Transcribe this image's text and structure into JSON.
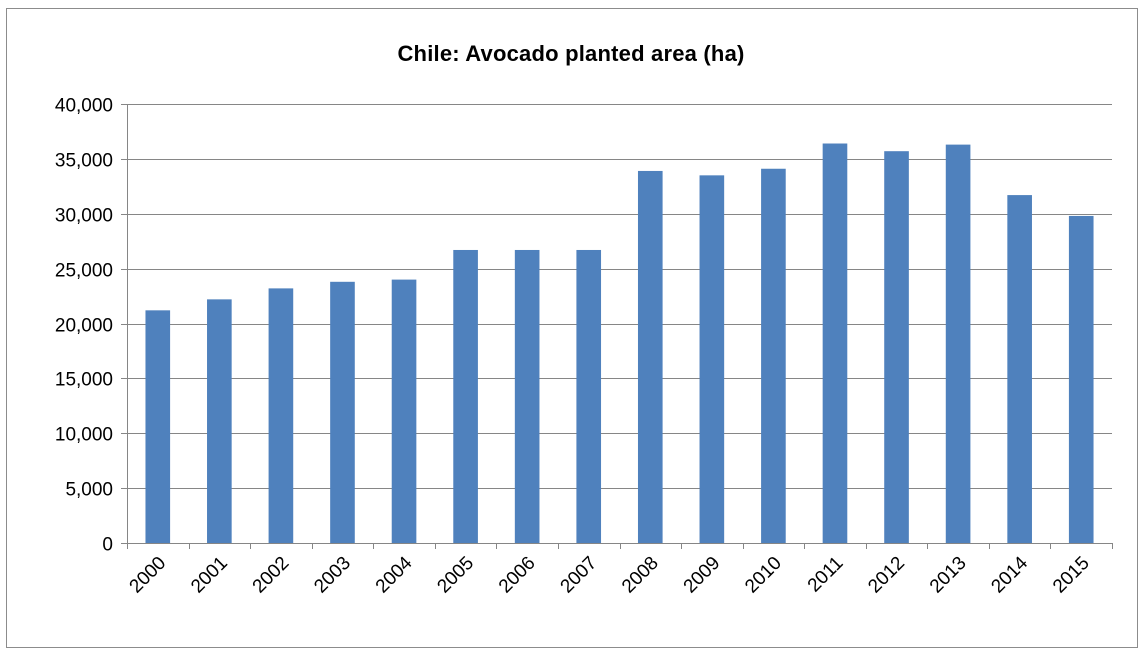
{
  "chart_data": {
    "type": "bar",
    "title": "Chile: Avocado planted area (ha)",
    "xlabel": "",
    "ylabel": "",
    "categories": [
      "2000",
      "2001",
      "2002",
      "2003",
      "2004",
      "2005",
      "2006",
      "2007",
      "2008",
      "2009",
      "2010",
      "2011",
      "2012",
      "2013",
      "2014",
      "2015"
    ],
    "values": [
      21200,
      22200,
      23200,
      23800,
      24000,
      26700,
      26700,
      26700,
      33900,
      33500,
      34100,
      36400,
      35700,
      36300,
      31700,
      29800
    ],
    "ylim": [
      0,
      40000
    ],
    "yticks": [
      0,
      5000,
      10000,
      15000,
      20000,
      25000,
      30000,
      35000,
      40000
    ],
    "ytick_labels": [
      "0",
      "5,000",
      "10,000",
      "15,000",
      "20,000",
      "25,000",
      "30,000",
      "35,000",
      "40,000"
    ],
    "grid": true,
    "legend": "none",
    "bar_color": "#4f81bd",
    "grid_color": "#868686"
  }
}
